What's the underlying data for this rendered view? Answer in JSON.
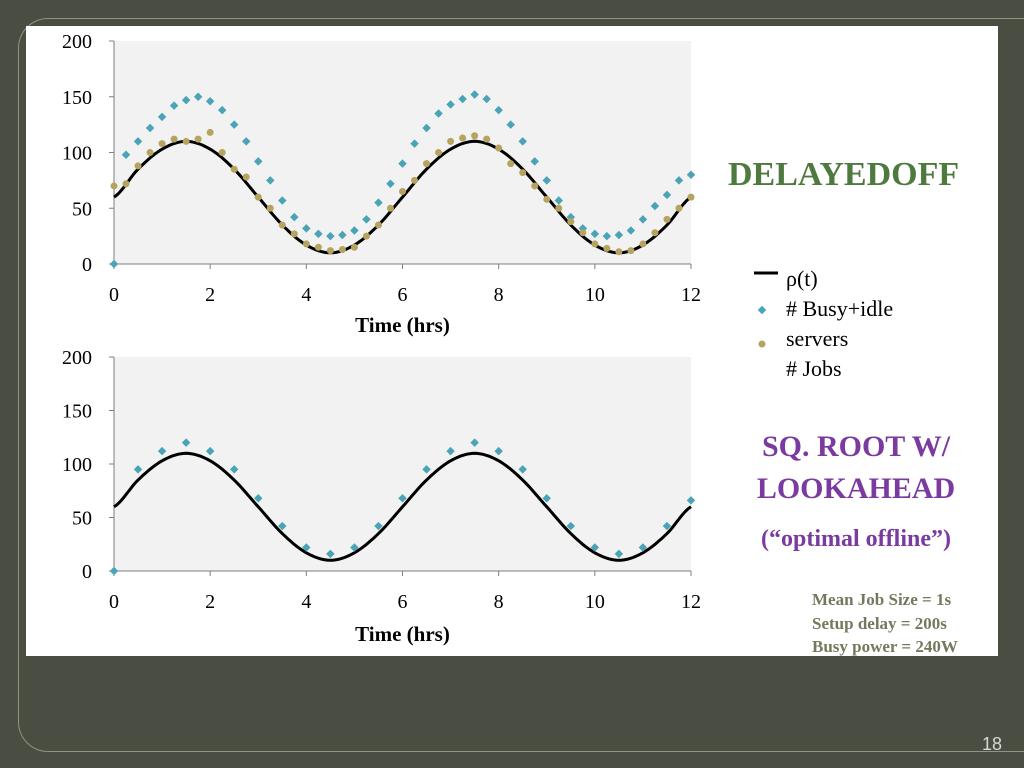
{
  "chart_data": [
    {
      "type": "scatter",
      "title": "DELAYEDOFF",
      "xlabel": "Time (hrs)",
      "ylabel": "",
      "xlim": [
        0,
        12
      ],
      "ylim": [
        0,
        200
      ],
      "xticks": [
        0,
        2,
        4,
        6,
        8,
        10,
        12
      ],
      "yticks": [
        0,
        50,
        100,
        150,
        200
      ],
      "grid": false,
      "legend_position": "right",
      "series": [
        {
          "name": "ρ(t)",
          "style": "line",
          "color": "#000000",
          "x": [
            0,
            0.5,
            1,
            1.5,
            2,
            2.5,
            3,
            3.5,
            4,
            4.5,
            5,
            5.5,
            6,
            6.5,
            7,
            7.5,
            8,
            8.5,
            9,
            9.5,
            10,
            10.5,
            11,
            11.5,
            12
          ],
          "y": [
            60,
            85,
            103,
            110,
            103,
            85,
            60,
            35,
            17,
            10,
            17,
            35,
            60,
            85,
            103,
            110,
            103,
            85,
            60,
            35,
            17,
            10,
            17,
            35,
            60
          ]
        },
        {
          "name": "# Busy+idle servers",
          "style": "diamond",
          "color": "#4ba3b6",
          "x": [
            0,
            0.25,
            0.5,
            0.75,
            1,
            1.25,
            1.5,
            1.75,
            2,
            2.25,
            2.5,
            2.75,
            3,
            3.25,
            3.5,
            3.75,
            4,
            4.25,
            4.5,
            4.75,
            5,
            5.25,
            5.5,
            5.75,
            6,
            6.25,
            6.5,
            6.75,
            7,
            7.25,
            7.5,
            7.75,
            8,
            8.25,
            8.5,
            8.75,
            9,
            9.25,
            9.5,
            9.75,
            10,
            10.25,
            10.5,
            10.75,
            11,
            11.25,
            11.5,
            11.75,
            12
          ],
          "y": [
            0,
            98,
            110,
            122,
            132,
            142,
            147,
            150,
            146,
            138,
            125,
            110,
            92,
            75,
            57,
            42,
            32,
            27,
            25,
            26,
            30,
            40,
            55,
            72,
            90,
            108,
            122,
            135,
            143,
            148,
            152,
            148,
            138,
            125,
            110,
            92,
            75,
            57,
            42,
            32,
            27,
            25,
            26,
            30,
            40,
            52,
            62,
            75,
            80
          ]
        },
        {
          "name": "# Jobs",
          "style": "dot",
          "color": "#b5a35f",
          "x": [
            0,
            0.25,
            0.5,
            0.75,
            1,
            1.25,
            1.5,
            1.75,
            2,
            2.25,
            2.5,
            2.75,
            3,
            3.25,
            3.5,
            3.75,
            4,
            4.25,
            4.5,
            4.75,
            5,
            5.25,
            5.5,
            5.75,
            6,
            6.25,
            6.5,
            6.75,
            7,
            7.25,
            7.5,
            7.75,
            8,
            8.25,
            8.5,
            8.75,
            9,
            9.25,
            9.5,
            9.75,
            10,
            10.25,
            10.5,
            10.75,
            11,
            11.25,
            11.5,
            11.75,
            12
          ],
          "y": [
            70,
            72,
            88,
            100,
            108,
            112,
            110,
            112,
            118,
            100,
            85,
            78,
            60,
            50,
            35,
            27,
            18,
            15,
            12,
            13,
            15,
            25,
            35,
            50,
            65,
            75,
            90,
            100,
            110,
            113,
            115,
            112,
            104,
            90,
            82,
            70,
            58,
            50,
            38,
            28,
            18,
            14,
            11,
            12,
            18,
            28,
            40,
            50,
            60
          ]
        }
      ]
    },
    {
      "type": "scatter",
      "title": "SQ. ROOT W/ LOOKAHEAD",
      "subtitle": "(“optimal offline”)",
      "xlabel": "Time (hrs)",
      "ylabel": "",
      "xlim": [
        0,
        12
      ],
      "ylim": [
        0,
        200
      ],
      "xticks": [
        0,
        2,
        4,
        6,
        8,
        10,
        12
      ],
      "yticks": [
        0,
        50,
        100,
        150,
        200
      ],
      "grid": false,
      "series": [
        {
          "name": "ρ(t)",
          "style": "line",
          "color": "#000000",
          "x": [
            0,
            0.5,
            1,
            1.5,
            2,
            2.5,
            3,
            3.5,
            4,
            4.5,
            5,
            5.5,
            6,
            6.5,
            7,
            7.5,
            8,
            8.5,
            9,
            9.5,
            10,
            10.5,
            11,
            11.5,
            12
          ],
          "y": [
            60,
            85,
            103,
            110,
            103,
            85,
            60,
            35,
            17,
            10,
            17,
            35,
            60,
            85,
            103,
            110,
            103,
            85,
            60,
            35,
            17,
            10,
            17,
            35,
            60
          ]
        },
        {
          "name": "# Busy+idle servers",
          "style": "diamond",
          "color": "#4ba3b6",
          "x": [
            0,
            0.5,
            1,
            1.5,
            2,
            2.5,
            3,
            3.5,
            4,
            4.5,
            5,
            5.5,
            6,
            6.5,
            7,
            7.5,
            8,
            8.5,
            9,
            9.5,
            10,
            10.5,
            11,
            11.5,
            12
          ],
          "y": [
            0,
            95,
            112,
            120,
            112,
            95,
            68,
            42,
            22,
            16,
            22,
            42,
            68,
            95,
            112,
            120,
            112,
            95,
            68,
            42,
            22,
            16,
            22,
            42,
            66
          ]
        }
      ]
    }
  ],
  "legend": {
    "items": [
      {
        "label": "ρ(t)"
      },
      {
        "label": "# Busy+idle"
      },
      {
        "label": "servers"
      },
      {
        "label": "# Jobs"
      }
    ]
  },
  "titles": {
    "top": "DELAYEDOFF",
    "bottom": "SQ. ROOT W/ LOOKAHEAD",
    "bottom_line1": "SQ. ROOT W/",
    "bottom_line2": "LOOKAHEAD",
    "bottom_sub": "(“optimal offline”)"
  },
  "params": {
    "line1": "Mean Job Size = 1s",
    "line2": "Setup delay = 200s",
    "line3": "Busy power = 240W"
  },
  "page_number": "18",
  "colors": {
    "background": "#4a4d42",
    "plot_area": "#f2f2f2",
    "busy_idle": "#4ba3b6",
    "jobs": "#b5a35f",
    "rho": "#000000",
    "delayedoff_title": "#4e7a3f",
    "sqroot_title": "#7b3aa0",
    "params_text": "#737a5c"
  }
}
